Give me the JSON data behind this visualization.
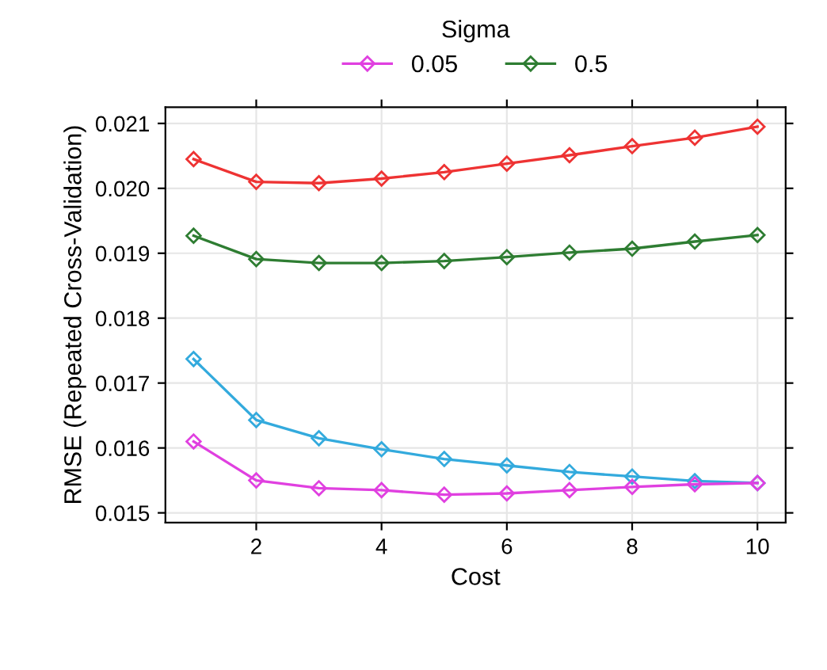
{
  "chart_data": {
    "type": "line",
    "legend_title": "Sigma",
    "xlabel": "Cost",
    "ylabel": "RMSE (Repeated Cross-Validation)",
    "x": [
      1,
      2,
      3,
      4,
      5,
      6,
      7,
      8,
      9,
      10
    ],
    "series": [
      {
        "color": "#33aadd",
        "values": [
          0.01737,
          0.01643,
          0.01615,
          0.01598,
          0.01583,
          0.01573,
          0.01563,
          0.01556,
          0.01549,
          0.01546
        ]
      },
      {
        "name": "0.05",
        "color": "#e040e0",
        "values": [
          0.0161,
          0.0155,
          0.01538,
          0.01535,
          0.01528,
          0.0153,
          0.01535,
          0.0154,
          0.01544,
          0.01546
        ]
      },
      {
        "name": "0.5",
        "color": "#2e7d32",
        "values": [
          0.01927,
          0.01891,
          0.01885,
          0.01885,
          0.01888,
          0.01894,
          0.01901,
          0.01907,
          0.01918,
          0.01928
        ]
      },
      {
        "color": "#ee3333",
        "values": [
          0.02045,
          0.0201,
          0.02008,
          0.02015,
          0.02025,
          0.02038,
          0.02051,
          0.02065,
          0.02078,
          0.02095
        ]
      }
    ],
    "xlim": [
      0.55,
      10.45
    ],
    "ylim": [
      0.01485,
      0.02125
    ],
    "xticks": [
      2,
      4,
      6,
      8,
      10
    ],
    "yticks": [
      0.015,
      0.016,
      0.017,
      0.018,
      0.019,
      {
        "value": 0.02,
        "label": "0.020"
      },
      0.021
    ],
    "grid": true,
    "legend": "top",
    "marker": "diamond",
    "line_style": "solid"
  }
}
